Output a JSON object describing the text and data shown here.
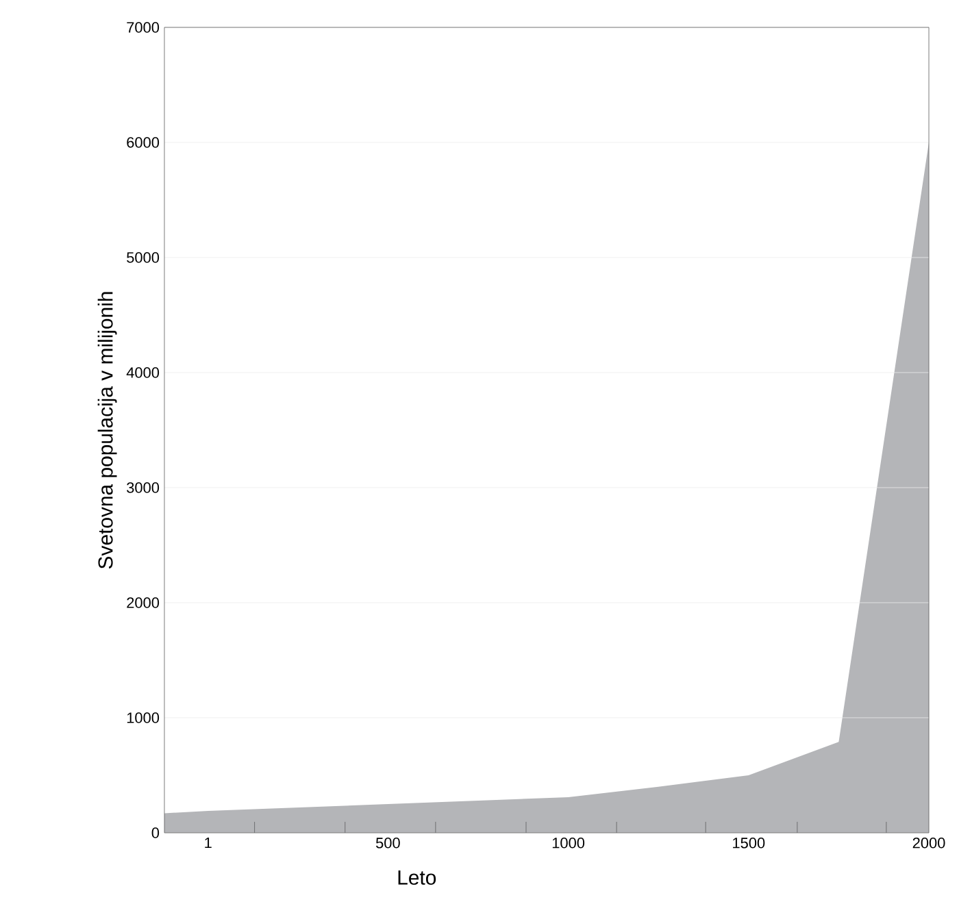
{
  "chart_data": {
    "type": "area",
    "xlabel": "Leto",
    "ylabel": "Svetovna populacija v milijonih",
    "x": [
      -120,
      1,
      500,
      1000,
      1250,
      1500,
      1750,
      2000
    ],
    "values": [
      170,
      190,
      250,
      310,
      400,
      500,
      790,
      6000
    ],
    "color": "#b4b5b8",
    "xlim": [
      -120,
      2000
    ],
    "xticks": [
      1,
      {
        "value": 130,
        "label": null
      },
      {
        "value": 381,
        "label": null
      },
      500,
      {
        "value": 632,
        "label": null
      },
      {
        "value": 883,
        "label": null
      },
      1000,
      {
        "value": 1134,
        "label": null
      },
      {
        "value": 1381,
        "label": null
      },
      1500,
      {
        "value": 1635,
        "label": null
      },
      {
        "value": 1882,
        "label": null
      },
      2000
    ],
    "ylim": [
      0,
      7000
    ],
    "yticks": [
      0,
      1000,
      2000,
      3000,
      4000,
      5000,
      6000,
      7000
    ],
    "grid": "y"
  }
}
